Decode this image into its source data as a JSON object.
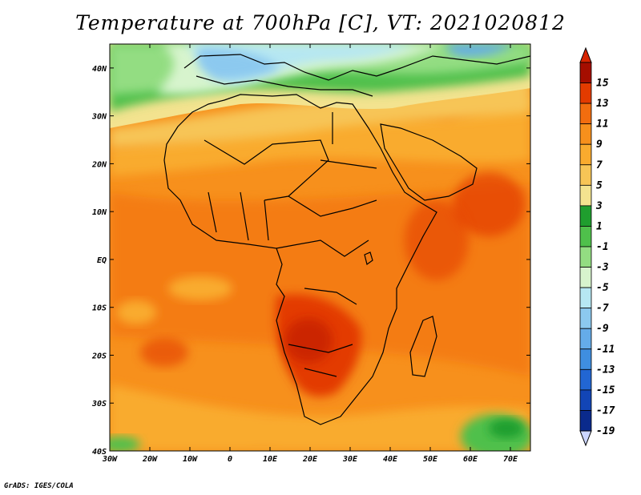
{
  "title": "Temperature at 700hPa [C], VT: 2021020812",
  "credit": "GrADS: IGES/COLA",
  "map": {
    "lon_range": [
      -30,
      75
    ],
    "lat_range": [
      -40,
      45
    ],
    "lon_ticks": [
      {
        "value": -30,
        "label": "30W"
      },
      {
        "value": -20,
        "label": "20W"
      },
      {
        "value": -10,
        "label": "10W"
      },
      {
        "value": 0,
        "label": "0"
      },
      {
        "value": 10,
        "label": "10E"
      },
      {
        "value": 20,
        "label": "20E"
      },
      {
        "value": 30,
        "label": "30E"
      },
      {
        "value": 40,
        "label": "40E"
      },
      {
        "value": 50,
        "label": "50E"
      },
      {
        "value": 60,
        "label": "60E"
      },
      {
        "value": 70,
        "label": "70E"
      }
    ],
    "lat_ticks": [
      {
        "value": 40,
        "label": "40N"
      },
      {
        "value": 30,
        "label": "30N"
      },
      {
        "value": 20,
        "label": "20N"
      },
      {
        "value": 10,
        "label": "10N"
      },
      {
        "value": 0,
        "label": "EQ"
      },
      {
        "value": -10,
        "label": "10S"
      },
      {
        "value": -20,
        "label": "20S"
      },
      {
        "value": -30,
        "label": "30S"
      },
      {
        "value": -40,
        "label": "40S"
      }
    ]
  },
  "colorbar": [
    {
      "label": "15",
      "color": "#a50e00"
    },
    {
      "label": "13",
      "color": "#e33b00"
    },
    {
      "label": "11",
      "color": "#f26d0f"
    },
    {
      "label": "9",
      "color": "#f7901c"
    },
    {
      "label": "7",
      "color": "#f9ab2e"
    },
    {
      "label": "5",
      "color": "#f7c556"
    },
    {
      "label": "3",
      "color": "#f3e38f"
    },
    {
      "label": "1",
      "color": "#1f9e2e"
    },
    {
      "label": "-1",
      "color": "#4fc04b"
    },
    {
      "label": "-3",
      "color": "#93dd82"
    },
    {
      "label": "-5",
      "color": "#d7f4cd"
    },
    {
      "label": "-7",
      "color": "#b6e7f2"
    },
    {
      "label": "-9",
      "color": "#8cc9ef"
    },
    {
      "label": "-11",
      "color": "#65ace9"
    },
    {
      "label": "-13",
      "color": "#3f8ee0"
    },
    {
      "label": "-15",
      "color": "#2266d3"
    },
    {
      "label": "-17",
      "color": "#1245b6"
    },
    {
      "label": "-19",
      "color": "#0a2a8c"
    }
  ],
  "colorbar_ends": {
    "top": "#d62400",
    "bottom": "#ccd6ff"
  },
  "regions": [
    {
      "name": "europe-cold-core",
      "color": "#b6e7f2"
    },
    {
      "name": "north-green",
      "color": "#4fc04b"
    },
    {
      "name": "south-atlantic-green",
      "color": "#4fc04b"
    }
  ]
}
